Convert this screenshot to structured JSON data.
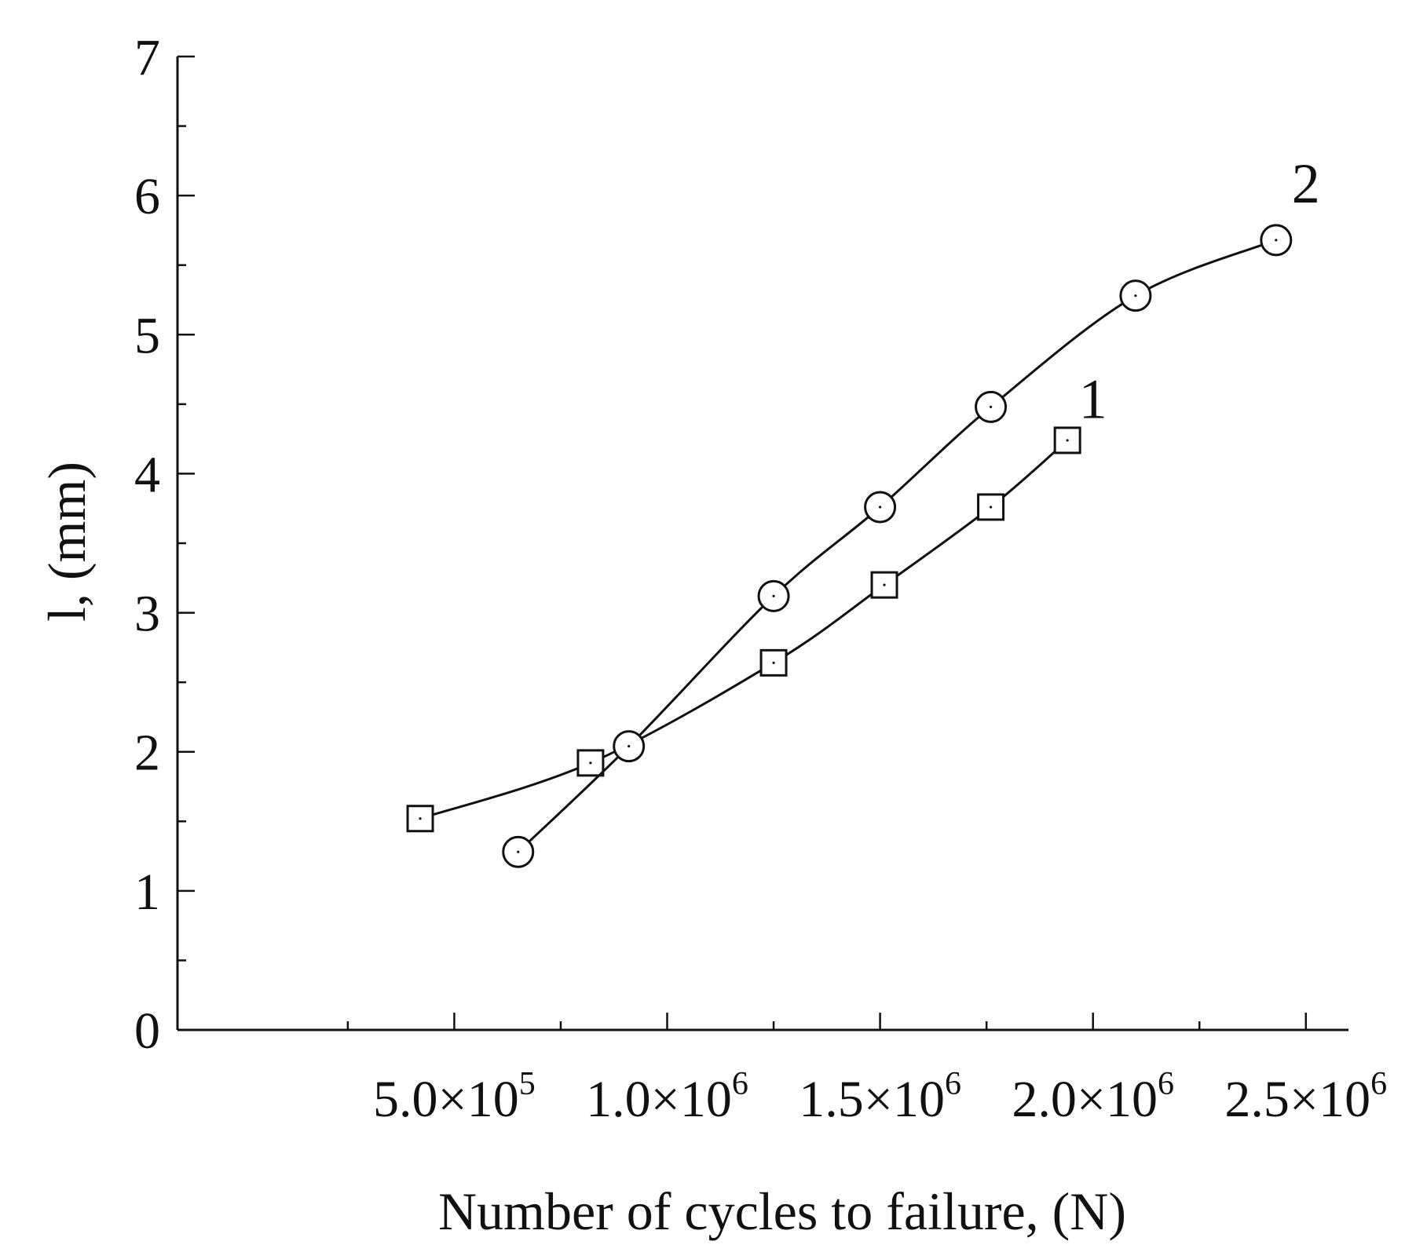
{
  "chart_data": {
    "type": "line",
    "title": "",
    "xlabel": "Number of cycles to failure, (N)",
    "ylabel": "l, (mm)",
    "xlim": [
      -150000,
      2600000
    ],
    "ylim": [
      0,
      7
    ],
    "x_ticks": [
      {
        "value": 500000,
        "mantissa": "5.0×10",
        "exp": "5"
      },
      {
        "value": 1000000,
        "mantissa": "1.0×10",
        "exp": "6"
      },
      {
        "value": 1500000,
        "mantissa": "1.5×10",
        "exp": "6"
      },
      {
        "value": 2000000,
        "mantissa": "2.0×10",
        "exp": "6"
      },
      {
        "value": 2500000,
        "mantissa": "2.5×10",
        "exp": "6"
      }
    ],
    "x_minor_ticks": [
      250000,
      750000,
      1250000,
      1750000,
      2250000
    ],
    "y_ticks": [
      "0",
      "1",
      "2",
      "3",
      "4",
      "5",
      "6",
      "7"
    ],
    "y_minor_step": 0.5,
    "grid": false,
    "series": [
      {
        "name": "1",
        "marker": "square",
        "x": [
          420000,
          820000,
          1250000,
          1510000,
          1760000,
          1940000
        ],
        "y": [
          1.52,
          1.92,
          2.64,
          3.2,
          3.76,
          4.24
        ],
        "label_at": {
          "x": 2000000,
          "y": 4.4
        }
      },
      {
        "name": "2",
        "marker": "circle",
        "x": [
          650000,
          910000,
          1250000,
          1500000,
          1760000,
          2100000,
          2430000
        ],
        "y": [
          1.28,
          2.04,
          3.12,
          3.76,
          4.48,
          5.28,
          5.68
        ],
        "label_at": {
          "x": 2500000,
          "y": 5.95
        }
      }
    ]
  }
}
